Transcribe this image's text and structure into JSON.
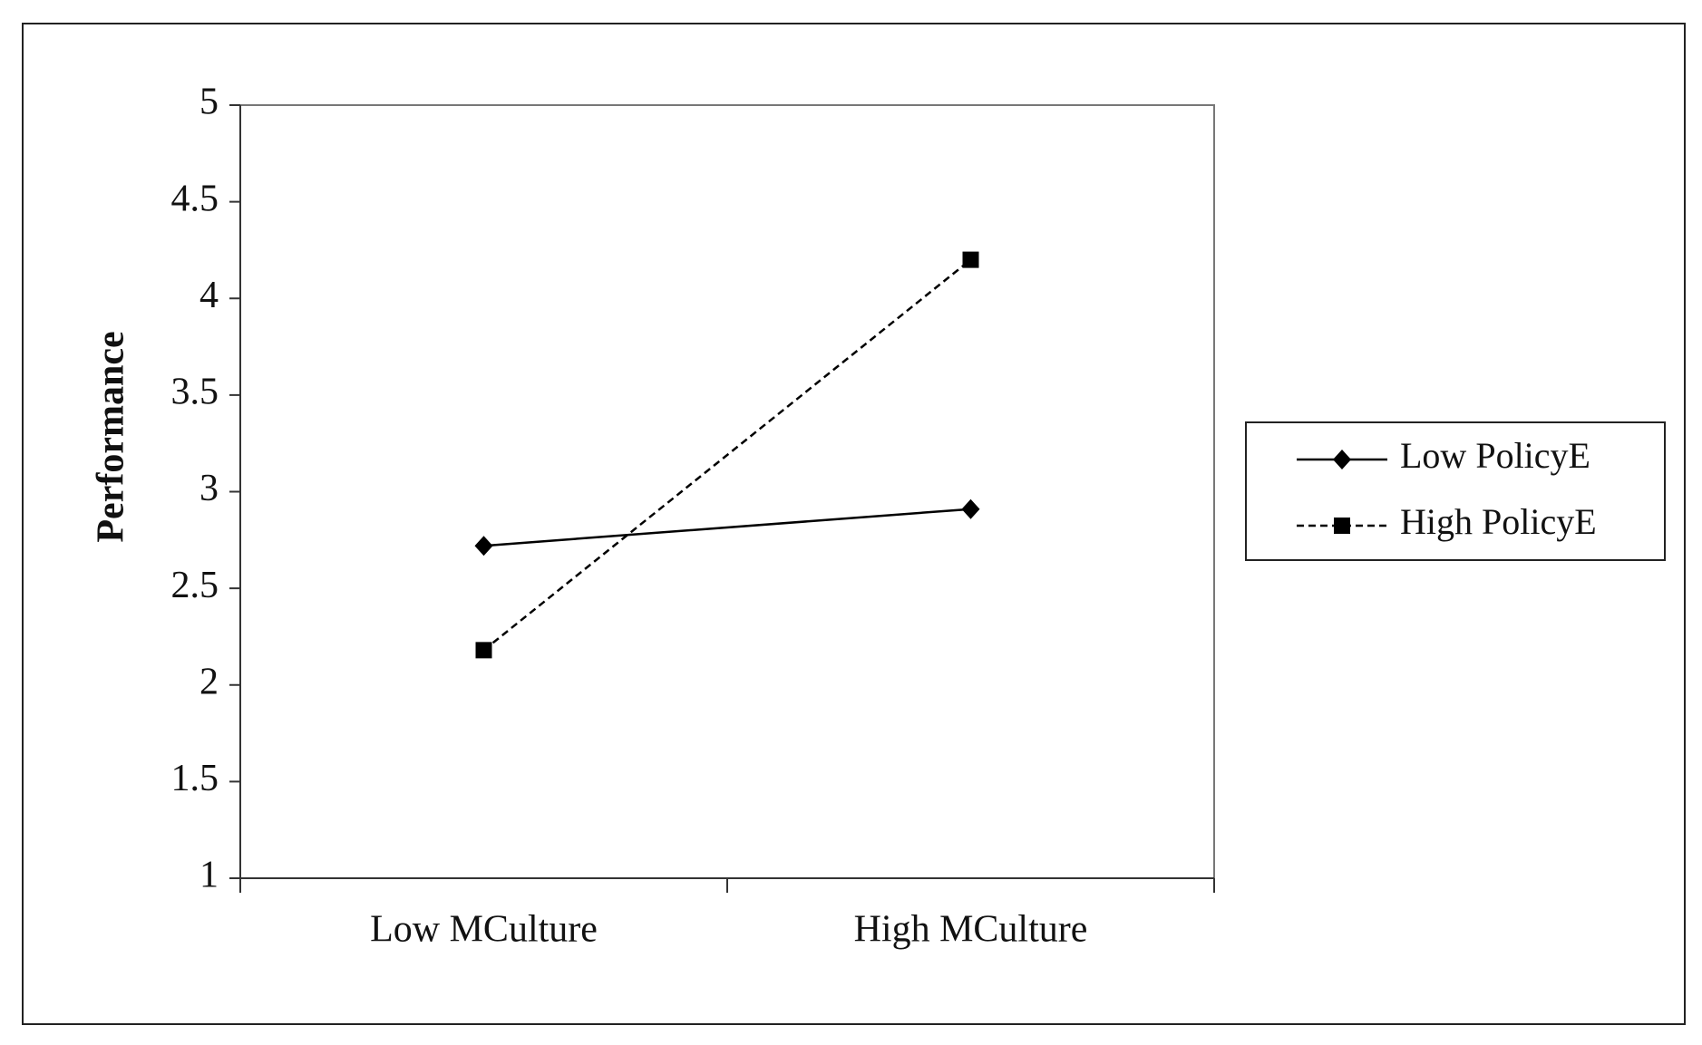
{
  "chart_data": {
    "type": "line",
    "title": "",
    "xlabel": "",
    "ylabel": "Performance",
    "ylim": [
      1,
      5
    ],
    "yticks": [
      "1",
      "1.5",
      "2",
      "2.5",
      "3",
      "3.5",
      "4",
      "4.5",
      "5"
    ],
    "categories": [
      "Low MCulture",
      "High MCulture"
    ],
    "series": [
      {
        "name": "Low PolicyE",
        "values": [
          2.72,
          2.91
        ],
        "line_style": "solid",
        "marker": "diamond",
        "color": "#000000"
      },
      {
        "name": "High PolicyE",
        "values": [
          2.18,
          4.2
        ],
        "line_style": "dashed",
        "marker": "square",
        "color": "#000000"
      }
    ],
    "grid": false,
    "legend_position": "right"
  }
}
